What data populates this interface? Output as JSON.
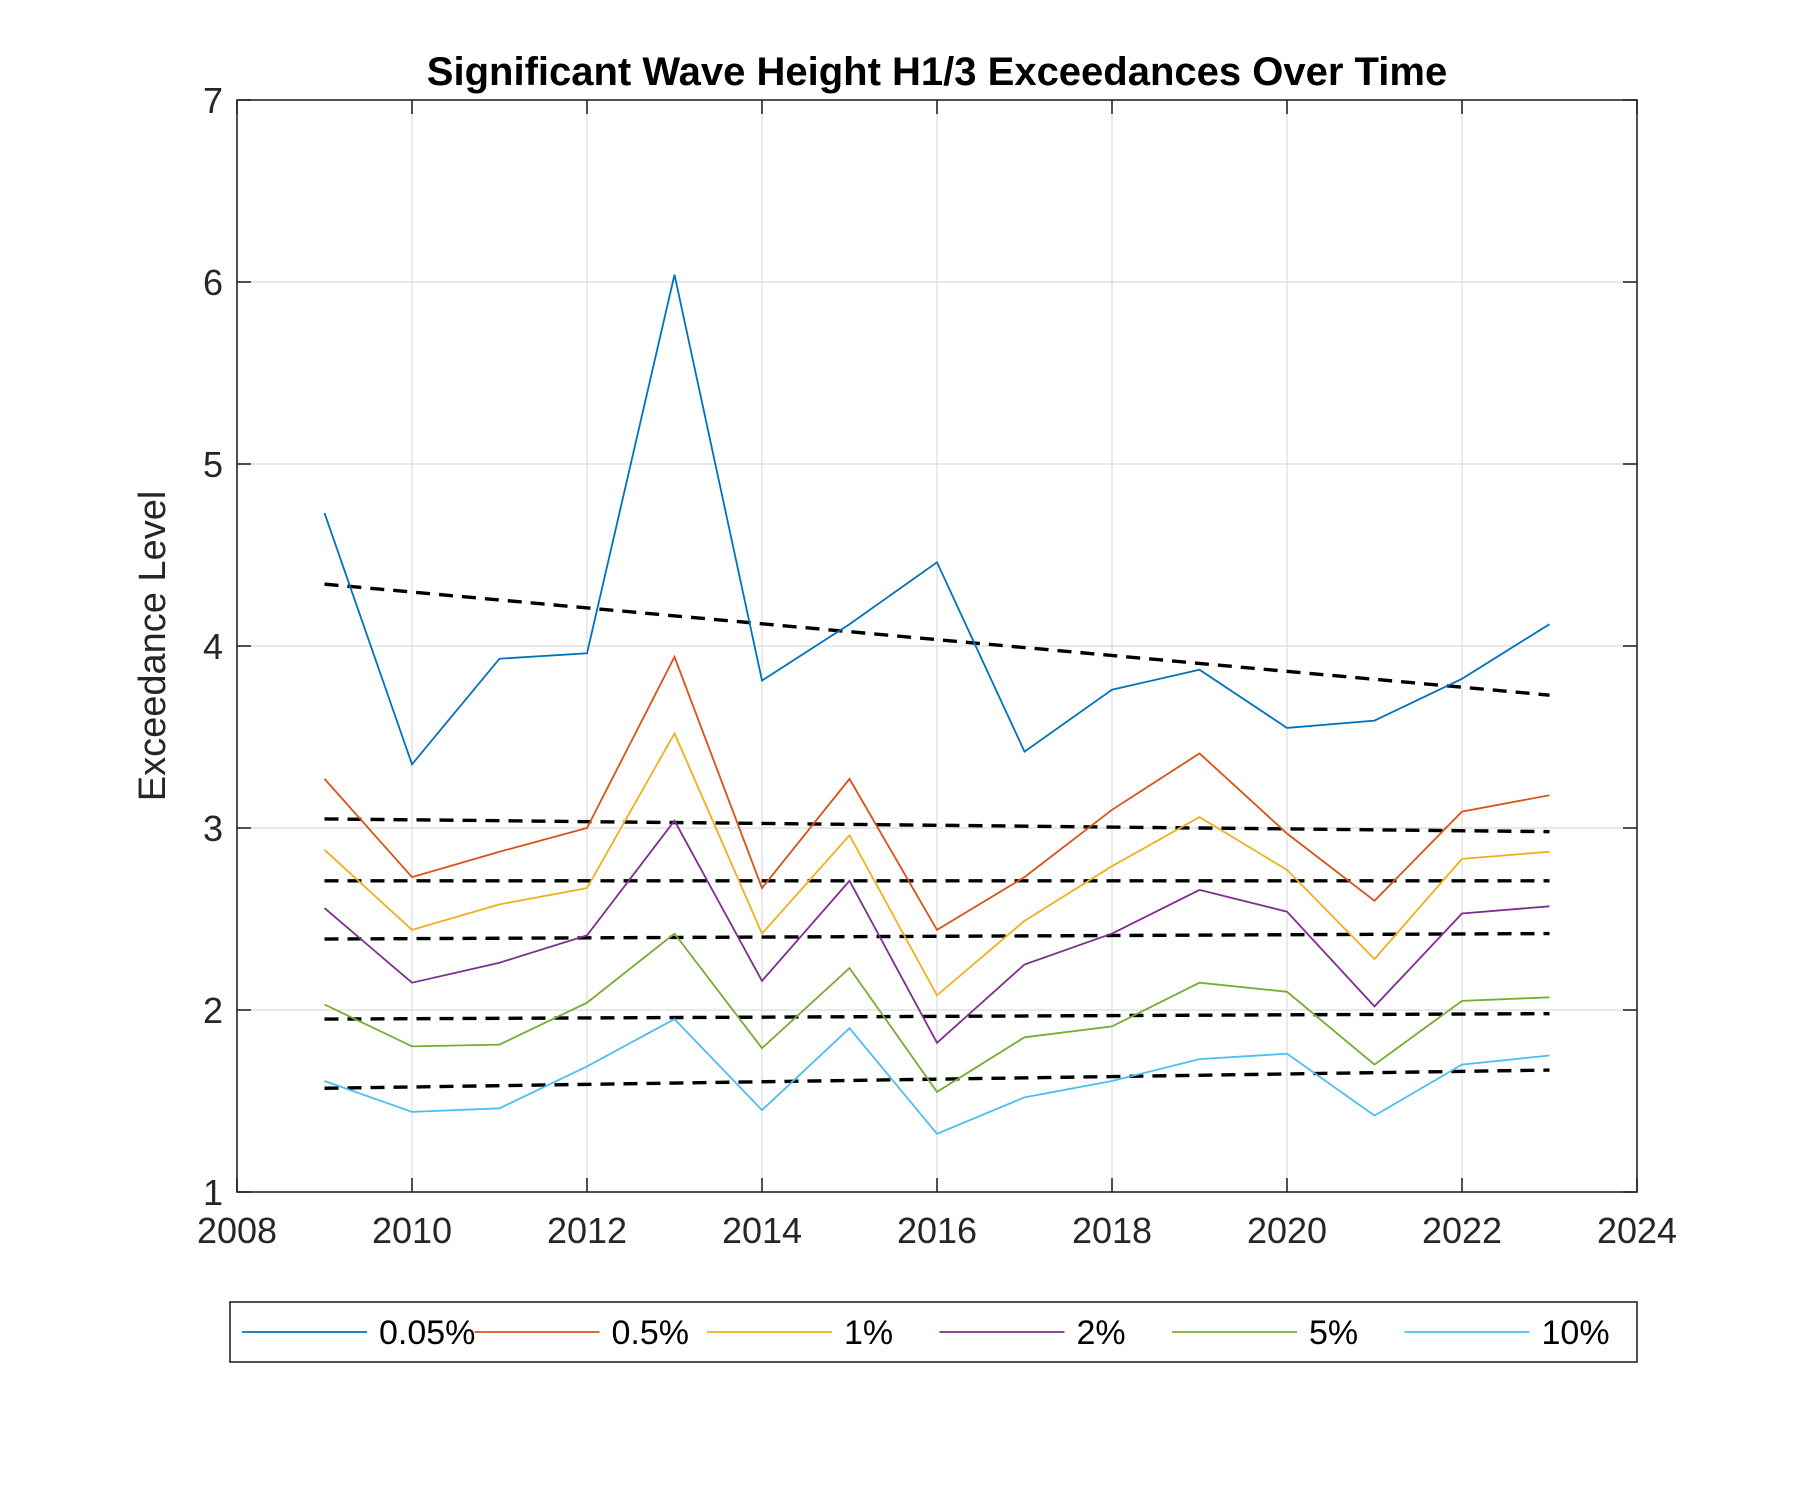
{
  "chart_data": {
    "type": "line",
    "title": "Significant Wave Height H1/3 Exceedances Over Time",
    "xlabel": "",
    "ylabel": "Exceedance Level",
    "xlim": [
      2008,
      2024
    ],
    "ylim": [
      1,
      7
    ],
    "xticks": [
      2008,
      2010,
      2012,
      2014,
      2016,
      2018,
      2020,
      2022,
      2024
    ],
    "yticks": [
      1,
      2,
      3,
      4,
      5,
      6,
      7
    ],
    "grid": true,
    "legend_position": "bottom-outside",
    "x": [
      2009,
      2010,
      2011,
      2012,
      2013,
      2014,
      2015,
      2016,
      2017,
      2018,
      2019,
      2020,
      2021,
      2022,
      2023
    ],
    "series": [
      {
        "name": "0.05%",
        "color": "#0072BD",
        "values": [
          4.73,
          3.35,
          3.93,
          3.96,
          6.04,
          3.81,
          4.12,
          4.46,
          3.42,
          3.76,
          3.87,
          3.55,
          3.59,
          3.82,
          4.12
        ],
        "trend": [
          4.34,
          3.73
        ]
      },
      {
        "name": "0.5%",
        "color": "#D95319",
        "values": [
          3.27,
          2.73,
          2.87,
          3.0,
          3.94,
          2.67,
          3.27,
          2.44,
          2.73,
          3.1,
          3.41,
          2.97,
          2.6,
          3.09,
          3.18
        ],
        "trend": [
          3.05,
          2.98
        ]
      },
      {
        "name": "1%",
        "color": "#EDB120",
        "values": [
          2.88,
          2.44,
          2.58,
          2.67,
          3.52,
          2.42,
          2.96,
          2.08,
          2.49,
          2.79,
          3.06,
          2.77,
          2.28,
          2.83,
          2.87
        ],
        "trend": [
          2.71,
          2.71
        ]
      },
      {
        "name": "2%",
        "color": "#7E2F8E",
        "values": [
          2.56,
          2.15,
          2.26,
          2.41,
          3.04,
          2.16,
          2.71,
          1.82,
          2.25,
          2.42,
          2.66,
          2.54,
          2.02,
          2.53,
          2.57
        ],
        "trend": [
          2.39,
          2.42
        ]
      },
      {
        "name": "5%",
        "color": "#77AC30",
        "values": [
          2.03,
          1.8,
          1.81,
          2.04,
          2.42,
          1.79,
          2.23,
          1.55,
          1.85,
          1.91,
          2.15,
          2.1,
          1.7,
          2.05,
          2.07
        ],
        "trend": [
          1.95,
          1.98
        ]
      },
      {
        "name": "10%",
        "color": "#4DBEEE",
        "values": [
          1.61,
          1.44,
          1.46,
          1.69,
          1.95,
          1.45,
          1.9,
          1.32,
          1.52,
          1.61,
          1.73,
          1.76,
          1.42,
          1.7,
          1.75
        ],
        "trend": [
          1.57,
          1.67
        ]
      }
    ]
  }
}
